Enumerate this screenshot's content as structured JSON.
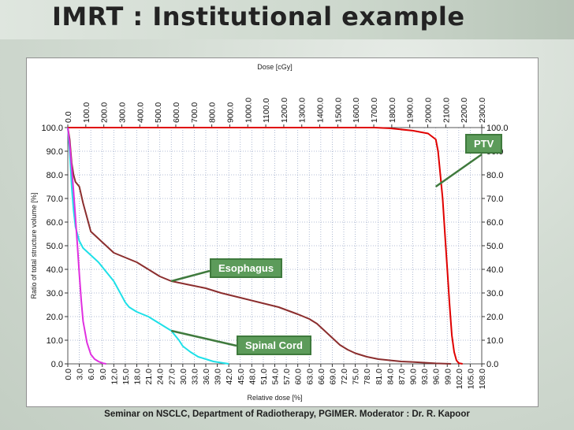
{
  "slide": {
    "title": "IMRT : Institutional example",
    "footer": "Seminar on NSCLC, Department of Radiotherapy, PGIMER. Moderator : Dr. R. Kapoor"
  },
  "chart_data": {
    "type": "line",
    "title": "",
    "xlabel": "Relative dose [%]",
    "x2label": "Dose [cGy]",
    "ylabel": "Ratio of total structure volume [%]",
    "xlim": [
      0,
      108
    ],
    "ylim": [
      0,
      100
    ],
    "x2lim": [
      0,
      2300
    ],
    "x_ticks": [
      "0.0",
      "3.0",
      "6.0",
      "9.0",
      "12.0",
      "15.0",
      "18.0",
      "21.0",
      "24.0",
      "27.0",
      "30.0",
      "33.0",
      "36.0",
      "39.0",
      "42.0",
      "45.0",
      "48.0",
      "51.0",
      "54.0",
      "57.0",
      "60.0",
      "63.0",
      "66.0",
      "69.0",
      "72.0",
      "75.0",
      "78.0",
      "81.0",
      "84.0",
      "87.0",
      "90.0",
      "93.0",
      "96.0",
      "99.0",
      "102.0",
      "105.0",
      "108.0"
    ],
    "x2_ticks": [
      "0.0",
      "100.0",
      "200.0",
      "300.0",
      "400.0",
      "500.0",
      "600.0",
      "700.0",
      "800.0",
      "900.0",
      "1000.0",
      "1100.0",
      "1200.0",
      "1300.0",
      "1400.0",
      "1500.0",
      "1600.0",
      "1700.0",
      "1800.0",
      "1900.0",
      "2000.0",
      "2100.0",
      "2200.0",
      "2300.0"
    ],
    "y_ticks": [
      "0.0",
      "10.0",
      "20.0",
      "30.0",
      "40.0",
      "50.0",
      "60.0",
      "70.0",
      "80.0",
      "90.0",
      "100.0"
    ],
    "grid": true,
    "series": [
      {
        "name": "PTV",
        "color": "#e00000",
        "x": [
          0,
          60,
          80,
          84,
          90,
          94,
          96,
          96.6,
          97.2,
          97.8,
          98.4,
          99.0,
          99.6,
          100.2,
          100.8,
          101.4,
          102.0,
          103
        ],
        "y": [
          100,
          100,
          100,
          99.7,
          98.7,
          97.5,
          95,
          90,
          80,
          70,
          55,
          40,
          25,
          12,
          5,
          1.5,
          0.3,
          0
        ]
      },
      {
        "name": "Esophagus",
        "color": "#8b2e2e",
        "x": [
          0,
          0.5,
          1,
          1.5,
          2,
          2.5,
          3,
          4,
          5,
          6,
          8,
          10,
          12,
          15,
          18,
          21,
          24,
          27,
          30,
          33,
          36,
          40,
          45,
          50,
          55,
          60,
          63,
          65,
          67,
          69,
          71,
          73,
          75,
          78,
          81,
          84,
          87,
          90,
          93,
          96,
          100
        ],
        "y": [
          100,
          95,
          85,
          80,
          77,
          76,
          75,
          68,
          62,
          56,
          53,
          50,
          47,
          45,
          43,
          40,
          37,
          35,
          34,
          33,
          32,
          30,
          28,
          26,
          24,
          21,
          19,
          17,
          14,
          11,
          8,
          6,
          4.5,
          3,
          2,
          1.5,
          1,
          0.8,
          0.5,
          0.2,
          0
        ]
      },
      {
        "name": "Spinal Cord",
        "color": "#1ee0e8",
        "x": [
          0,
          0.5,
          1,
          1.5,
          2,
          3,
          4,
          6,
          8,
          10,
          12,
          14,
          15,
          16,
          17,
          18,
          21,
          24,
          27,
          28,
          29,
          30,
          32,
          34,
          36,
          38,
          40,
          42
        ],
        "y": [
          100,
          90,
          75,
          65,
          58,
          52,
          49,
          46,
          43,
          39,
          35,
          29,
          26,
          24,
          23,
          22,
          20,
          17,
          14,
          12,
          10,
          7.5,
          5,
          3,
          2,
          1,
          0.5,
          0
        ]
      },
      {
        "name": "",
        "color": "#e030e0",
        "x": [
          0,
          0.5,
          1,
          1.5,
          2,
          2.5,
          3,
          3.5,
          4,
          5,
          6,
          7,
          8,
          9,
          10
        ],
        "y": [
          100,
          93,
          83,
          73,
          62,
          50,
          38,
          27,
          18,
          9,
          4,
          2,
          1,
          0.3,
          0
        ]
      }
    ],
    "annotations": [
      {
        "label": "PTV",
        "target_x": 96,
        "target_y": 75
      },
      {
        "label": "Esophagus",
        "target_x": 27,
        "target_y": 35
      },
      {
        "label": "Spinal Cord",
        "target_x": 27,
        "target_y": 14
      }
    ]
  }
}
